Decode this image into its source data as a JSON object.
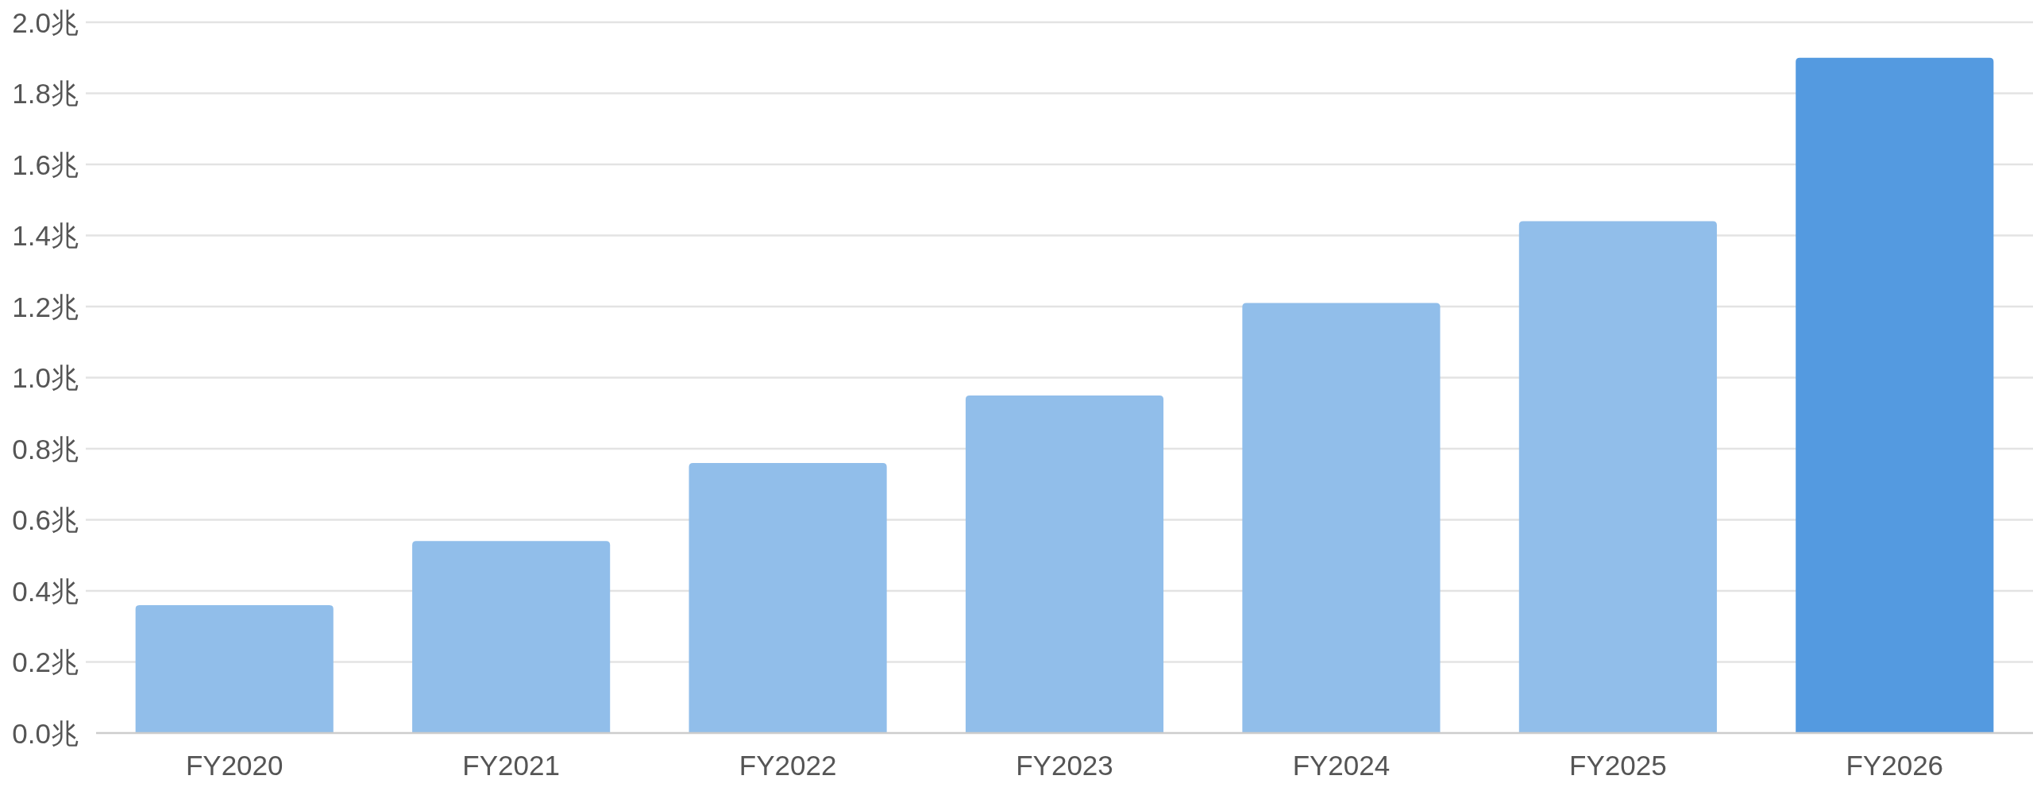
{
  "chart_data": {
    "type": "bar",
    "categories": [
      "FY2020",
      "FY2021",
      "FY2022",
      "FY2023",
      "FY2024",
      "FY2025",
      "FY2026"
    ],
    "values": [
      0.36,
      0.54,
      0.76,
      0.95,
      1.21,
      1.44,
      1.9
    ],
    "colors": [
      "#91beea",
      "#91beea",
      "#91beea",
      "#91beea",
      "#91beea",
      "#91beea",
      "#549ae0"
    ],
    "ylim": [
      0,
      2
    ],
    "yticks": [
      {
        "value": 0,
        "label": "0.0兆"
      },
      {
        "value": 0.2,
        "label": "0.2兆"
      },
      {
        "value": 0.4,
        "label": "0.4兆"
      },
      {
        "value": 0.6,
        "label": "0.6兆"
      },
      {
        "value": 0.8,
        "label": "0.8兆"
      },
      {
        "value": 1,
        "label": "1.0兆"
      },
      {
        "value": 1.2,
        "label": "1.2兆"
      },
      {
        "value": 1.4,
        "label": "1.4兆"
      },
      {
        "value": 1.6,
        "label": "1.6兆"
      },
      {
        "value": 1.8,
        "label": "1.8兆"
      },
      {
        "value": 2,
        "label": "2.0兆"
      }
    ],
    "grid": "y"
  }
}
